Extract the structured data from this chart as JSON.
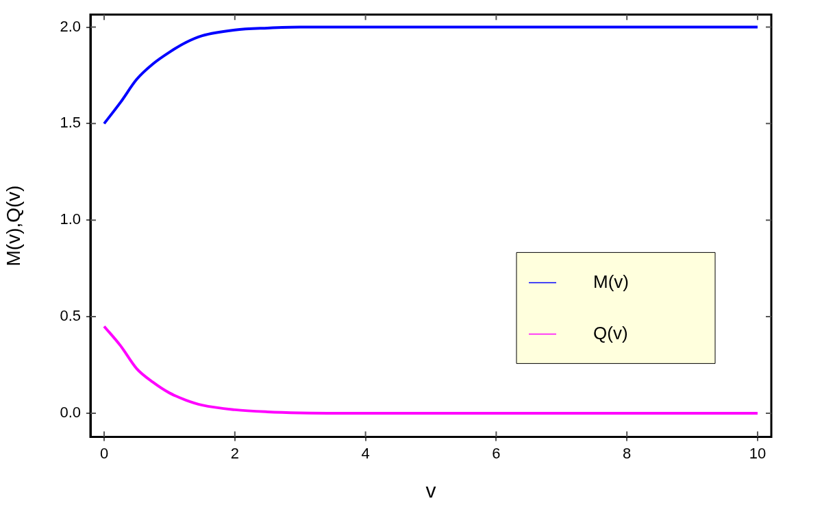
{
  "chart_data": {
    "type": "line",
    "xlabel": "v",
    "ylabel": "M(v),Q(v)",
    "x": [
      0,
      0.25,
      0.5,
      0.75,
      1,
      1.25,
      1.5,
      2,
      2.5,
      3,
      4,
      6,
      8,
      10
    ],
    "series": [
      {
        "name": "M(v)",
        "color": "#0000ff",
        "values": [
          1.5,
          1.61,
          1.73,
          1.81,
          1.87,
          1.92,
          1.955,
          1.985,
          1.995,
          2.0,
          2.0,
          2.0,
          2.0,
          2.0
        ]
      },
      {
        "name": "Q(v)",
        "color": "#ff00ff",
        "values": [
          0.45,
          0.35,
          0.23,
          0.16,
          0.105,
          0.068,
          0.042,
          0.018,
          0.007,
          0.002,
          0,
          0,
          0,
          0
        ]
      }
    ],
    "xlim": [
      -0.21,
      10.21
    ],
    "ylim": [
      -0.123,
      2.065
    ],
    "xticks": [
      0,
      2,
      4,
      6,
      8,
      10
    ],
    "yticks": [
      {
        "value": 0,
        "label": "0.0"
      },
      {
        "value": 0.5,
        "label": "0.5"
      },
      {
        "value": 1,
        "label": "1.0"
      },
      {
        "value": 1.5,
        "label": "1.5"
      },
      {
        "value": 2,
        "label": "2.0"
      }
    ],
    "grid": false,
    "legend": "right",
    "marker": "none",
    "line_style": "solid"
  }
}
